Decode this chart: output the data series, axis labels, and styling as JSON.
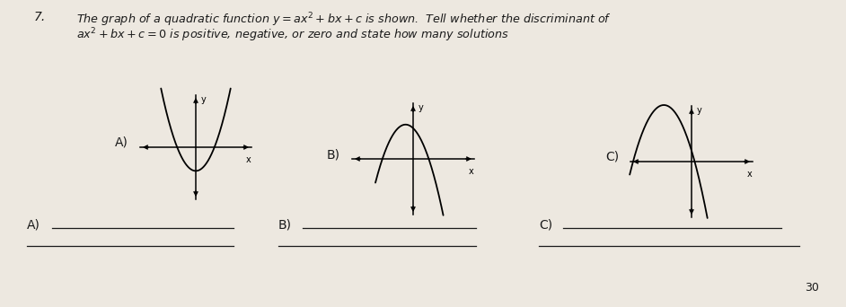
{
  "background_color": "#ede8e0",
  "title_line1": "The graph of a quadratic function $y=ax^2+bx+c$ is shown.  Tell whether the discriminant of",
  "title_line2": "$ax^2+bx+c=0$ is positive, negative, or zero and state how many solutions",
  "number": "7.",
  "label_A": "A)",
  "label_B": "B)",
  "label_C": "C)",
  "answer_A": "A)",
  "answer_B": "B)",
  "answer_C": "C)",
  "page_number": "30",
  "text_color": "#1a1a1a"
}
